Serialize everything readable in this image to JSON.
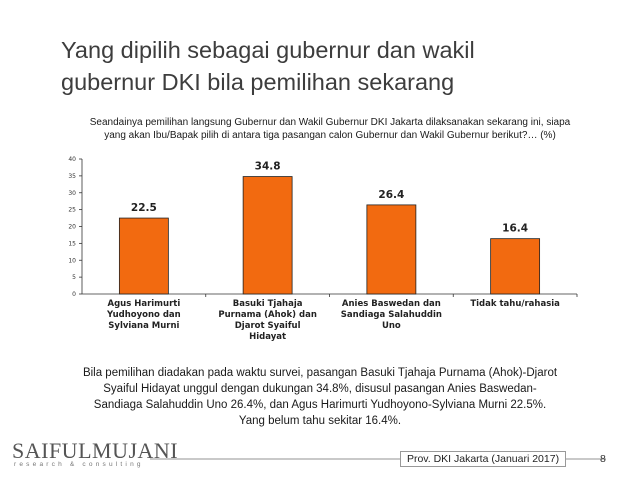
{
  "slide": {
    "title_line1": "Yang dipilih sebagai gubernur dan wakil",
    "title_line2": "gubernur DKI bila pemilihan sekarang",
    "subtitle_line1": "Seandainya pemilihan langsung Gubernur dan Wakil Gubernur DKI Jakarta dilaksanakan sekarang ini, siapa",
    "subtitle_line2": "yang akan Ibu/Bapak pilih di antara tiga pasangan calon Gubernur dan Wakil Gubernur berikut?… (%)",
    "summary_line1": "Bila pemilihan diadakan pada waktu survei, pasangan Basuki Tjahaja Purnama (Ahok)-Djarot",
    "summary_line2": "Syaiful Hidayat unggul dengan dukungan 34.8%, disusul pasangan Anies Baswedan-",
    "summary_line3": "Sandiaga Salahuddin Uno 26.4%, dan Agus Harimurti Yudhoyono-Sylviana Murni 22.5%.",
    "summary_line4": "Yang belum tahu sekitar 16.4%.",
    "logo_text": "SAIFULMUJANI",
    "logo_tagline": "research & consulting",
    "footer_text": "Prov. DKI Jakarta (Januari 2017)",
    "page_number": "8"
  },
  "colors": {
    "bar_fill": "#f26a10",
    "bar_stroke": "#222222"
  },
  "chart_data": {
    "type": "bar",
    "categories": [
      [
        "Agus Harimurti",
        "Yudhoyono dan",
        "Sylviana Murni"
      ],
      [
        "Basuki Tjahaja",
        "Purnama (Ahok) dan",
        "Djarot Syaiful",
        "Hidayat"
      ],
      [
        "Anies Baswedan dan",
        "Sandiaga Salahuddin",
        "Uno"
      ],
      [
        "Tidak tahu/rahasia"
      ]
    ],
    "values": [
      22.5,
      34.8,
      26.4,
      16.4
    ],
    "data_labels": [
      "22.5",
      "34.8",
      "26.4",
      "16.4"
    ],
    "yticks": [
      "0",
      "5",
      "10",
      "15",
      "20",
      "25",
      "30",
      "35",
      "40"
    ],
    "ylim": [
      0,
      40
    ],
    "grid": false
  }
}
